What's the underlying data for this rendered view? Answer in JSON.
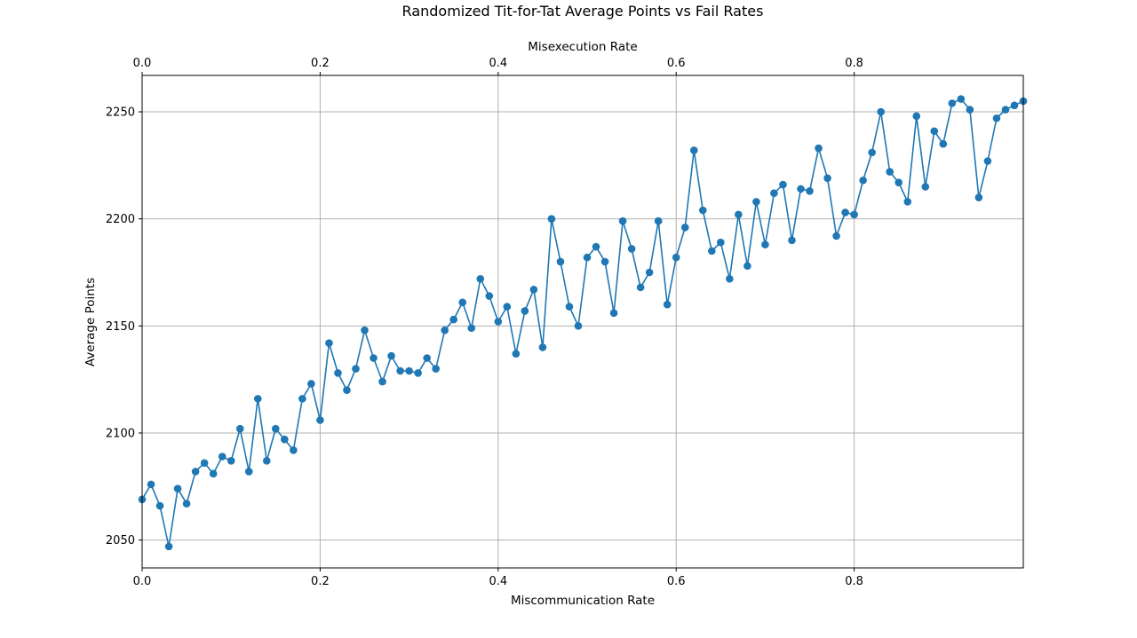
{
  "chart_data": {
    "type": "line",
    "title": "Randomized Tit-for-Tat Average Points vs Fail Rates",
    "xlabel": "Miscommunication Rate",
    "x2label": "Misexecution Rate",
    "ylabel": "Average Points",
    "xlim": [
      0,
      0.99
    ],
    "ylim": [
      2037,
      2267
    ],
    "x_ticks": [
      0.0,
      0.2,
      0.4,
      0.6,
      0.8
    ],
    "x_tick_labels": [
      "0.0",
      "0.2",
      "0.4",
      "0.6",
      "0.8"
    ],
    "x2_ticks": [
      0.0,
      0.2,
      0.4,
      0.6,
      0.8
    ],
    "x2_tick_labels": [
      "0.0",
      "0.2",
      "0.4",
      "0.6",
      "0.8"
    ],
    "y_ticks": [
      2050,
      2100,
      2150,
      2200,
      2250
    ],
    "y_tick_labels": [
      "2050",
      "2100",
      "2150",
      "2200",
      "2250"
    ],
    "grid": true,
    "marker": "circle",
    "color": "#1f77b4",
    "x": [
      0.0,
      0.01,
      0.02,
      0.03,
      0.04,
      0.05,
      0.06,
      0.07,
      0.08,
      0.09,
      0.1,
      0.11,
      0.12,
      0.13,
      0.14,
      0.15,
      0.16,
      0.17,
      0.18,
      0.19,
      0.2,
      0.21,
      0.22,
      0.23,
      0.24,
      0.25,
      0.26,
      0.27,
      0.28,
      0.29,
      0.3,
      0.31,
      0.32,
      0.33,
      0.34,
      0.35,
      0.36,
      0.37,
      0.38,
      0.39,
      0.4,
      0.41,
      0.42,
      0.43,
      0.44,
      0.45,
      0.46,
      0.47,
      0.48,
      0.49,
      0.5,
      0.51,
      0.52,
      0.53,
      0.54,
      0.55,
      0.56,
      0.57,
      0.58,
      0.59,
      0.6,
      0.61,
      0.62,
      0.63,
      0.64,
      0.65,
      0.66,
      0.67,
      0.68,
      0.69,
      0.7,
      0.71,
      0.72,
      0.73,
      0.74,
      0.75,
      0.76,
      0.77,
      0.78,
      0.79,
      0.8,
      0.81,
      0.82,
      0.83,
      0.84,
      0.85,
      0.86,
      0.87,
      0.88,
      0.89,
      0.9,
      0.91,
      0.92,
      0.93,
      0.94,
      0.95,
      0.96,
      0.97,
      0.98,
      0.99
    ],
    "values": [
      2069,
      2076,
      2066,
      2047,
      2074,
      2067,
      2082,
      2086,
      2081,
      2089,
      2087,
      2102,
      2082,
      2116,
      2087,
      2102,
      2097,
      2092,
      2116,
      2123,
      2106,
      2142,
      2128,
      2120,
      2130,
      2148,
      2135,
      2124,
      2136,
      2129,
      2129,
      2128,
      2135,
      2130,
      2148,
      2153,
      2161,
      2149,
      2172,
      2164,
      2152,
      2159,
      2137,
      2157,
      2167,
      2140,
      2200,
      2180,
      2159,
      2150,
      2182,
      2187,
      2180,
      2156,
      2199,
      2186,
      2168,
      2175,
      2199,
      2160,
      2182,
      2196,
      2232,
      2204,
      2185,
      2189,
      2172,
      2202,
      2178,
      2208,
      2188,
      2212,
      2216,
      2190,
      2214,
      2213,
      2233,
      2219,
      2192,
      2203,
      2202,
      2218,
      2231,
      2250,
      2222,
      2217,
      2208,
      2248,
      2215,
      2241,
      2235,
      2254,
      2256,
      2251,
      2210,
      2227,
      2247,
      2251,
      2253,
      2255
    ]
  }
}
